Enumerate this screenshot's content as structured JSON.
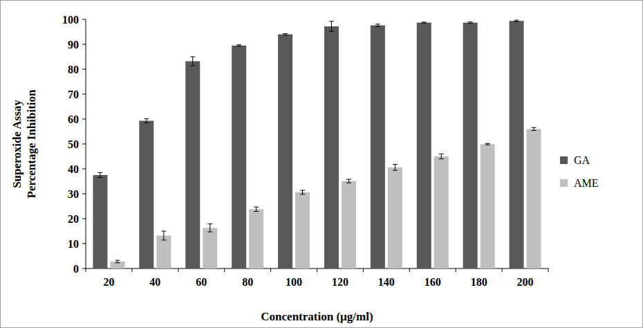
{
  "chart_data": {
    "type": "bar",
    "x_label": "Concentration (µg/ml)",
    "y_label": [
      "Superoxide Assay",
      "Percentage Inhibition"
    ],
    "categories": [
      "20",
      "40",
      "60",
      "80",
      "100",
      "120",
      "140",
      "160",
      "180",
      "200"
    ],
    "series": [
      {
        "name": "GA",
        "color": "#595959",
        "values": [
          37.5,
          59.3,
          83.2,
          89.5,
          94,
          97.2,
          97.6,
          98.7,
          98.7,
          99.4
        ],
        "errors": [
          1,
          0.8,
          1.8,
          0.3,
          0.3,
          2,
          0.5,
          0.2,
          0.3,
          0.3
        ]
      },
      {
        "name": "AME",
        "color": "#bfbfbf",
        "values": [
          2.8,
          13.2,
          16.3,
          23.8,
          30.6,
          35.1,
          40.6,
          45,
          49.9,
          56
        ],
        "errors": [
          0.5,
          1.8,
          1.6,
          0.9,
          0.8,
          0.7,
          1.2,
          1,
          0.3,
          0.6
        ]
      }
    ],
    "ylim": [
      0,
      100
    ],
    "yticks": [
      0,
      10,
      20,
      30,
      40,
      50,
      60,
      70,
      80,
      90,
      100
    ],
    "grid": false,
    "legend": "right"
  }
}
